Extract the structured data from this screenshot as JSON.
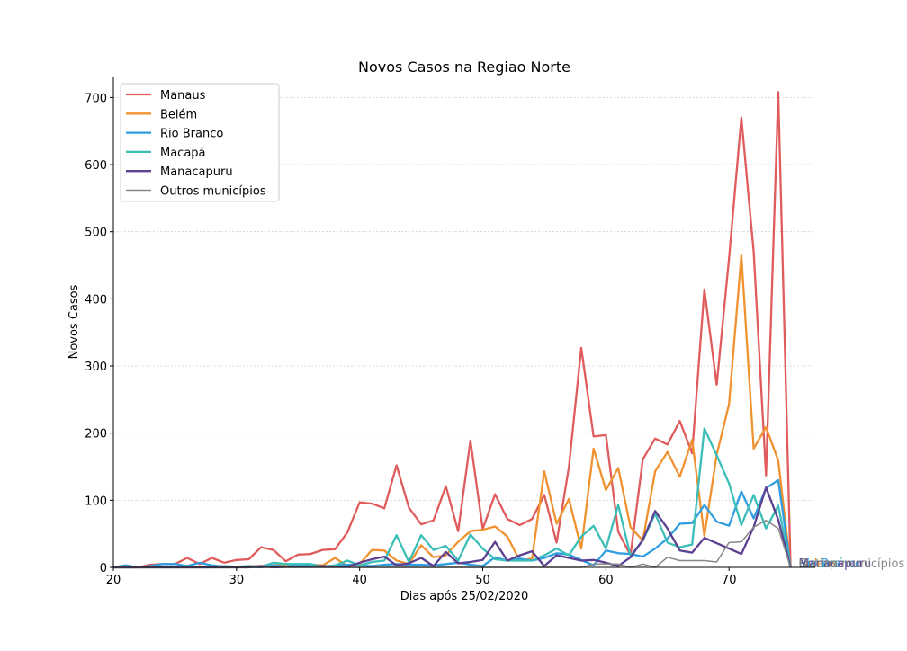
{
  "chart_data": {
    "type": "line",
    "title": "Novos Casos na Regiao Norte",
    "xlabel": "Dias após 25/02/2020",
    "ylabel": "Novos Casos",
    "xlim": [
      20,
      77
    ],
    "ylim": [
      0,
      730
    ],
    "x_ticks": [
      20,
      30,
      40,
      50,
      60,
      70
    ],
    "y_ticks": [
      0,
      100,
      200,
      300,
      400,
      500,
      600,
      700
    ],
    "grid": "horizontal dotted",
    "legend_position": "upper-left",
    "x": [
      20,
      21,
      22,
      23,
      24,
      25,
      26,
      27,
      28,
      29,
      30,
      31,
      32,
      33,
      34,
      35,
      36,
      37,
      38,
      39,
      40,
      41,
      42,
      43,
      44,
      45,
      46,
      47,
      48,
      49,
      50,
      51,
      52,
      53,
      54,
      55,
      56,
      57,
      58,
      59,
      60,
      61,
      62,
      63,
      64,
      65,
      66,
      67,
      68,
      69,
      70,
      71,
      72,
      73,
      74,
      75
    ],
    "series": [
      {
        "name": "Manaus",
        "color": "#e05c5c",
        "values": [
          0,
          0,
          0,
          4,
          5,
          5,
          14,
          5,
          14,
          7,
          11,
          12,
          30,
          26,
          9,
          19,
          20,
          26,
          27,
          52,
          97,
          95,
          88,
          152,
          89,
          64,
          70,
          121,
          54,
          189,
          57,
          109,
          72,
          63,
          72,
          108,
          37,
          150,
          327,
          195,
          197,
          53,
          18,
          161,
          192,
          183,
          218,
          170,
          414,
          272,
          460,
          670,
          470,
          137,
          708,
          0
        ]
      },
      {
        "name": "Belém",
        "color": "#f0922f",
        "values": [
          0,
          0,
          0,
          0,
          0,
          0,
          0,
          0,
          0,
          0,
          0,
          2,
          2,
          3,
          4,
          4,
          4,
          3,
          14,
          2,
          5,
          26,
          25,
          10,
          5,
          33,
          15,
          18,
          38,
          54,
          56,
          61,
          46,
          10,
          13,
          143,
          65,
          102,
          28,
          177,
          115,
          148,
          60,
          40,
          143,
          172,
          135,
          190,
          47,
          168,
          243,
          465,
          177,
          209,
          159,
          0
        ]
      },
      {
        "name": "Rio Branco",
        "color": "#2f9ee0",
        "values": [
          0,
          3,
          0,
          2,
          5,
          5,
          2,
          7,
          3,
          1,
          0,
          1,
          0,
          3,
          1,
          3,
          2,
          1,
          3,
          4,
          3,
          2,
          4,
          5,
          4,
          4,
          3,
          5,
          7,
          4,
          2,
          15,
          10,
          13,
          10,
          14,
          21,
          19,
          11,
          3,
          25,
          21,
          20,
          16,
          28,
          43,
          65,
          66,
          93,
          68,
          62,
          113,
          73,
          118,
          130,
          0
        ]
      },
      {
        "name": "Macapá",
        "color": "#3bbdb8",
        "values": [
          0,
          0,
          0,
          0,
          0,
          0,
          0,
          0,
          0,
          2,
          1,
          2,
          1,
          7,
          5,
          5,
          5,
          1,
          3,
          10,
          3,
          8,
          10,
          48,
          8,
          48,
          26,
          32,
          10,
          49,
          28,
          12,
          10,
          10,
          10,
          18,
          28,
          18,
          46,
          62,
          28,
          93,
          17,
          40,
          80,
          37,
          30,
          34,
          207,
          167,
          125,
          63,
          108,
          58,
          92,
          0
        ]
      },
      {
        "name": "Manacapuru",
        "color": "#5c3f91",
        "values": [
          0,
          0,
          0,
          0,
          0,
          0,
          0,
          0,
          0,
          0,
          0,
          0,
          2,
          0,
          1,
          1,
          1,
          2,
          1,
          1,
          7,
          12,
          16,
          3,
          6,
          14,
          2,
          23,
          6,
          8,
          11,
          38,
          10,
          18,
          24,
          2,
          18,
          14,
          10,
          11,
          7,
          2,
          15,
          41,
          84,
          58,
          25,
          22,
          44,
          36,
          28,
          20,
          60,
          119,
          71,
          0
        ]
      },
      {
        "name": "Outros municípios",
        "color": "#888888",
        "values": [
          0,
          0,
          0,
          0,
          0,
          0,
          0,
          0,
          0,
          0,
          0,
          0,
          0,
          0,
          0,
          0,
          0,
          0,
          0,
          0,
          0,
          0,
          0,
          0,
          0,
          0,
          0,
          0,
          0,
          0,
          0,
          0,
          0,
          0,
          0,
          0,
          0,
          0,
          0,
          5,
          5,
          5,
          0,
          5,
          0,
          15,
          10,
          10,
          10,
          8,
          37,
          38,
          60,
          70,
          58,
          0
        ]
      }
    ],
    "end_labels": [
      {
        "text": "Manaus",
        "color": "#e05c5c"
      },
      {
        "text": "Belém",
        "color": "#f0922f"
      },
      {
        "text": "Rio Branco",
        "color": "#2f9ee0"
      },
      {
        "text": "Macapá",
        "color": "#3bbdb8"
      },
      {
        "text": "Manacapuru",
        "color": "#5c3f91"
      },
      {
        "text": "Outros municípios",
        "color": "#888888"
      }
    ]
  }
}
